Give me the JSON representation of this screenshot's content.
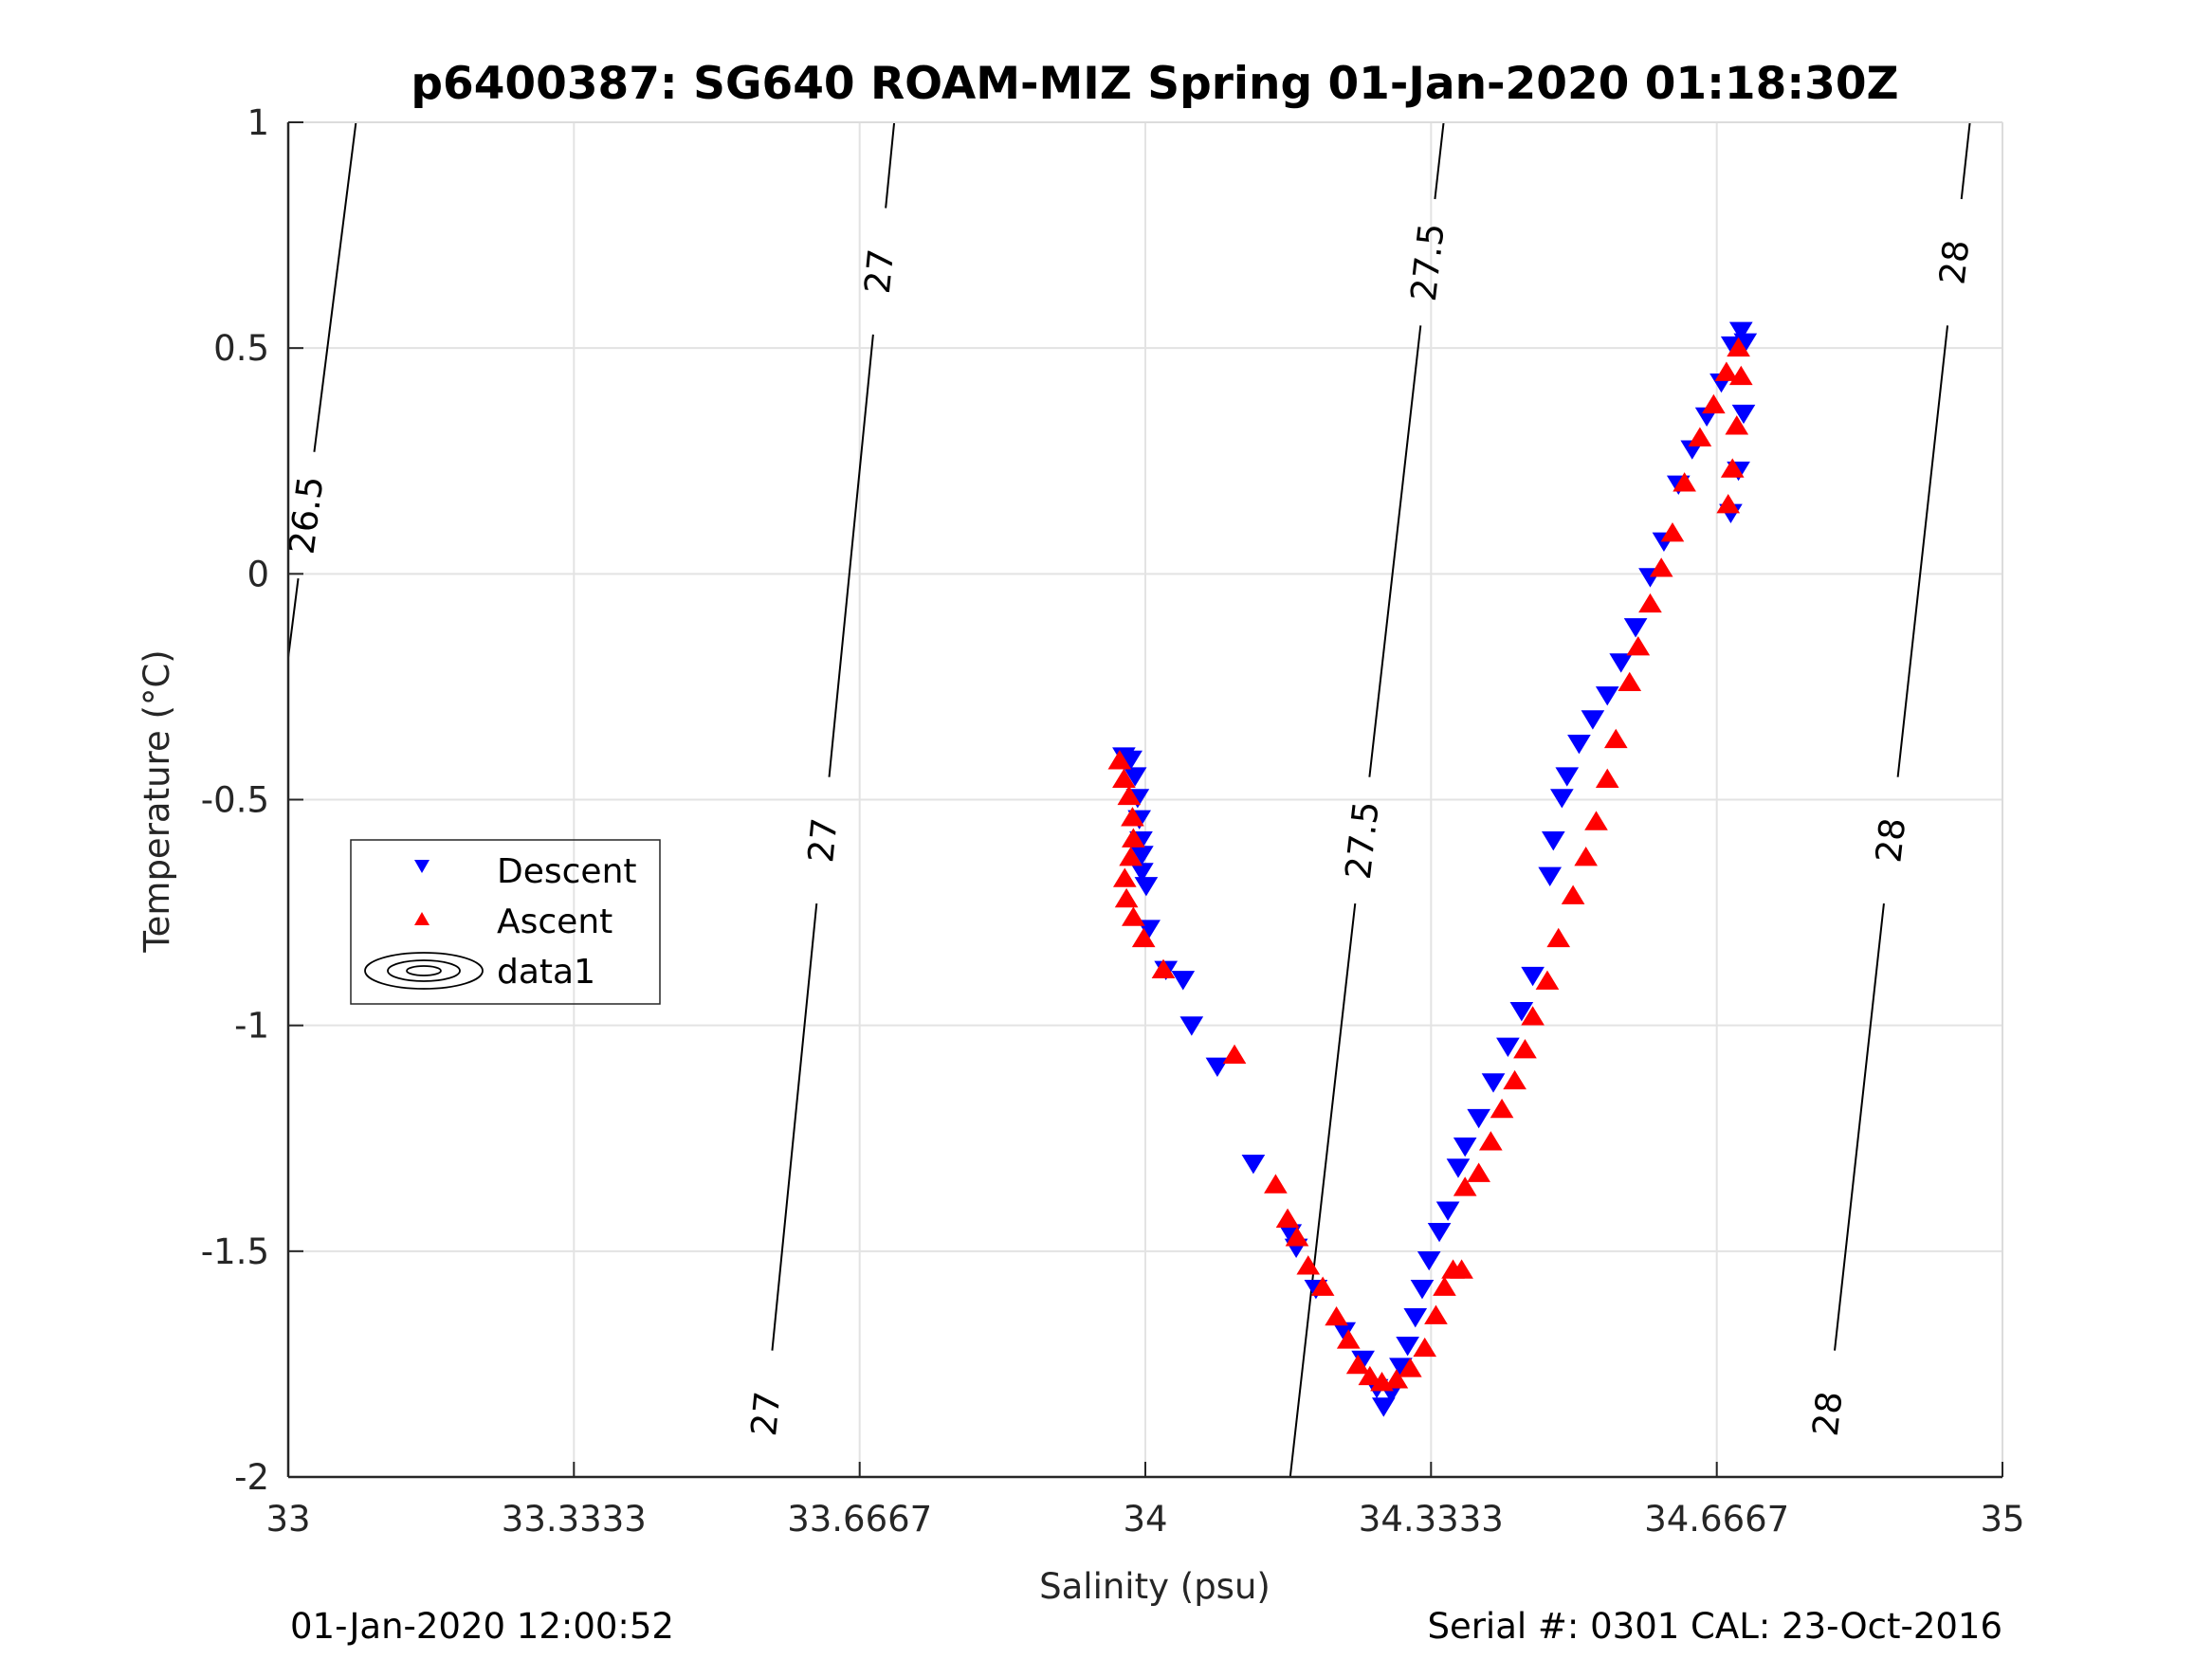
{
  "chart_data": {
    "type": "scatter",
    "title": "p6400387: SG640 ROAM-MIZ Spring 01-Jan-2020 01:18:30Z",
    "xlabel": "Salinity (psu)",
    "ylabel": "Temperature (°C)",
    "xlim": [
      33,
      35
    ],
    "ylim": [
      -2,
      1
    ],
    "xticks": [
      33,
      33.3333,
      33.6667,
      34,
      34.3333,
      34.6667,
      35
    ],
    "xtick_labels": [
      "33",
      "33.3333",
      "33.6667",
      "34",
      "34.3333",
      "34.6667",
      "35"
    ],
    "yticks": [
      1,
      0.5,
      0,
      -0.5,
      -1,
      -1.5,
      -2
    ],
    "ytick_labels": [
      "1",
      "0.5",
      "0",
      "-0.5",
      "-1",
      "-1.5",
      "-2"
    ],
    "grid": true,
    "legend": {
      "placement": "left-middle",
      "entries": [
        {
          "label": "Descent",
          "marker": "triangle-down",
          "color": "#0000ff"
        },
        {
          "label": "Ascent",
          "marker": "triangle-up",
          "color": "#ff0000"
        },
        {
          "label": "data1",
          "marker": "contour",
          "color": "#000000"
        }
      ]
    },
    "series": [
      {
        "name": "Descent",
        "color": "#0000ff",
        "marker": "triangle-down",
        "points": [
          [
            33.975,
            -0.402
          ],
          [
            33.983,
            -0.409
          ],
          [
            33.988,
            -0.446
          ],
          [
            33.991,
            -0.494
          ],
          [
            33.993,
            -0.541
          ],
          [
            33.995,
            -0.588
          ],
          [
            33.996,
            -0.62
          ],
          [
            33.996,
            -0.658
          ],
          [
            34.001,
            -0.689
          ],
          [
            34.004,
            -0.784
          ],
          [
            34.024,
            -0.875
          ],
          [
            34.044,
            -0.897
          ],
          [
            34.054,
            -0.998
          ],
          [
            34.084,
            -1.089
          ],
          [
            34.126,
            -1.304
          ],
          [
            34.169,
            -1.458
          ],
          [
            34.176,
            -1.49
          ],
          [
            34.199,
            -1.581
          ],
          [
            34.232,
            -1.675
          ],
          [
            34.254,
            -1.738
          ],
          [
            34.27,
            -1.801
          ],
          [
            34.278,
            -1.842
          ],
          [
            34.287,
            -1.811
          ],
          [
            34.298,
            -1.754
          ],
          [
            34.306,
            -1.707
          ],
          [
            34.315,
            -1.644
          ],
          [
            34.323,
            -1.581
          ],
          [
            34.331,
            -1.518
          ],
          [
            34.343,
            -1.455
          ],
          [
            34.353,
            -1.408
          ],
          [
            34.365,
            -1.313
          ],
          [
            34.373,
            -1.266
          ],
          [
            34.389,
            -1.203
          ],
          [
            34.406,
            -1.124
          ],
          [
            34.423,
            -1.045
          ],
          [
            34.439,
            -0.966
          ],
          [
            34.452,
            -0.888
          ],
          [
            34.472,
            -0.667
          ],
          [
            34.476,
            -0.588
          ],
          [
            34.486,
            -0.494
          ],
          [
            34.492,
            -0.446
          ],
          [
            34.506,
            -0.374
          ],
          [
            34.522,
            -0.32
          ],
          [
            34.539,
            -0.267
          ],
          [
            34.555,
            -0.194
          ],
          [
            34.572,
            -0.116
          ],
          [
            34.589,
            -0.005
          ],
          [
            34.605,
            0.074
          ],
          [
            34.622,
            0.2
          ],
          [
            34.638,
            0.278
          ],
          [
            34.655,
            0.351
          ],
          [
            34.672,
            0.426
          ],
          [
            34.685,
            0.508
          ],
          [
            34.695,
            0.54
          ],
          [
            34.7,
            0.515
          ],
          [
            34.698,
            0.357
          ],
          [
            34.692,
            0.231
          ],
          [
            34.683,
            0.137
          ]
        ]
      },
      {
        "name": "Ascent",
        "color": "#ff0000",
        "marker": "triangle-up",
        "points": [
          [
            33.97,
            -0.415
          ],
          [
            33.975,
            -0.456
          ],
          [
            33.981,
            -0.494
          ],
          [
            33.985,
            -0.541
          ],
          [
            33.986,
            -0.588
          ],
          [
            33.983,
            -0.629
          ],
          [
            33.976,
            -0.676
          ],
          [
            33.978,
            -0.721
          ],
          [
            33.986,
            -0.762
          ],
          [
            33.998,
            -0.809
          ],
          [
            34.021,
            -0.878
          ],
          [
            34.104,
            -1.067
          ],
          [
            34.152,
            -1.354
          ],
          [
            34.166,
            -1.43
          ],
          [
            34.177,
            -1.471
          ],
          [
            34.19,
            -1.534
          ],
          [
            34.207,
            -1.581
          ],
          [
            34.223,
            -1.647
          ],
          [
            34.237,
            -1.698
          ],
          [
            34.248,
            -1.754
          ],
          [
            34.262,
            -1.779
          ],
          [
            34.276,
            -1.792
          ],
          [
            34.293,
            -1.786
          ],
          [
            34.309,
            -1.761
          ],
          [
            34.326,
            -1.716
          ],
          [
            34.339,
            -1.644
          ],
          [
            34.349,
            -1.581
          ],
          [
            34.359,
            -1.543
          ],
          [
            34.369,
            -1.543
          ],
          [
            34.373,
            -1.36
          ],
          [
            34.389,
            -1.329
          ],
          [
            34.403,
            -1.259
          ],
          [
            34.416,
            -1.187
          ],
          [
            34.431,
            -1.124
          ],
          [
            34.443,
            -1.055
          ],
          [
            34.452,
            -0.982
          ],
          [
            34.469,
            -0.903
          ],
          [
            34.482,
            -0.809
          ],
          [
            34.499,
            -0.714
          ],
          [
            34.514,
            -0.629
          ],
          [
            34.526,
            -0.55
          ],
          [
            34.539,
            -0.456
          ],
          [
            34.549,
            -0.368
          ],
          [
            34.565,
            -0.242
          ],
          [
            34.575,
            -0.163
          ],
          [
            34.589,
            -0.068
          ],
          [
            34.602,
            0.011
          ],
          [
            34.615,
            0.089
          ],
          [
            34.629,
            0.2
          ],
          [
            34.647,
            0.3
          ],
          [
            34.663,
            0.373
          ],
          [
            34.678,
            0.445
          ],
          [
            34.692,
            0.499
          ],
          [
            34.695,
            0.436
          ],
          [
            34.69,
            0.326
          ],
          [
            34.685,
            0.231
          ],
          [
            34.68,
            0.152
          ]
        ]
      }
    ],
    "contours": [
      {
        "level": "26.5",
        "from": [
          33.079,
          1
        ],
        "to": [
          33.0,
          -0.185
        ],
        "label_at_T": [
          0.13
        ]
      },
      {
        "level": "27",
        "from": [
          33.707,
          1
        ],
        "to": [
          33.55,
          -2
        ],
        "label_at_T": [
          0.67,
          -0.59,
          -1.86
        ]
      },
      {
        "level": "27.5",
        "from": [
          34.348,
          1
        ],
        "to": [
          34.169,
          -2
        ],
        "label_at_T": [
          0.69,
          -0.59
        ]
      },
      {
        "level": "28",
        "from": [
          34.962,
          1
        ],
        "to": [
          34.788,
          -2
        ],
        "label_at_T": [
          0.69,
          -0.59,
          -1.86
        ]
      }
    ]
  },
  "footer": {
    "left": "01-Jan-2020 12:00:52",
    "right": "Serial #: 0301  CAL: 23-Oct-2016"
  }
}
